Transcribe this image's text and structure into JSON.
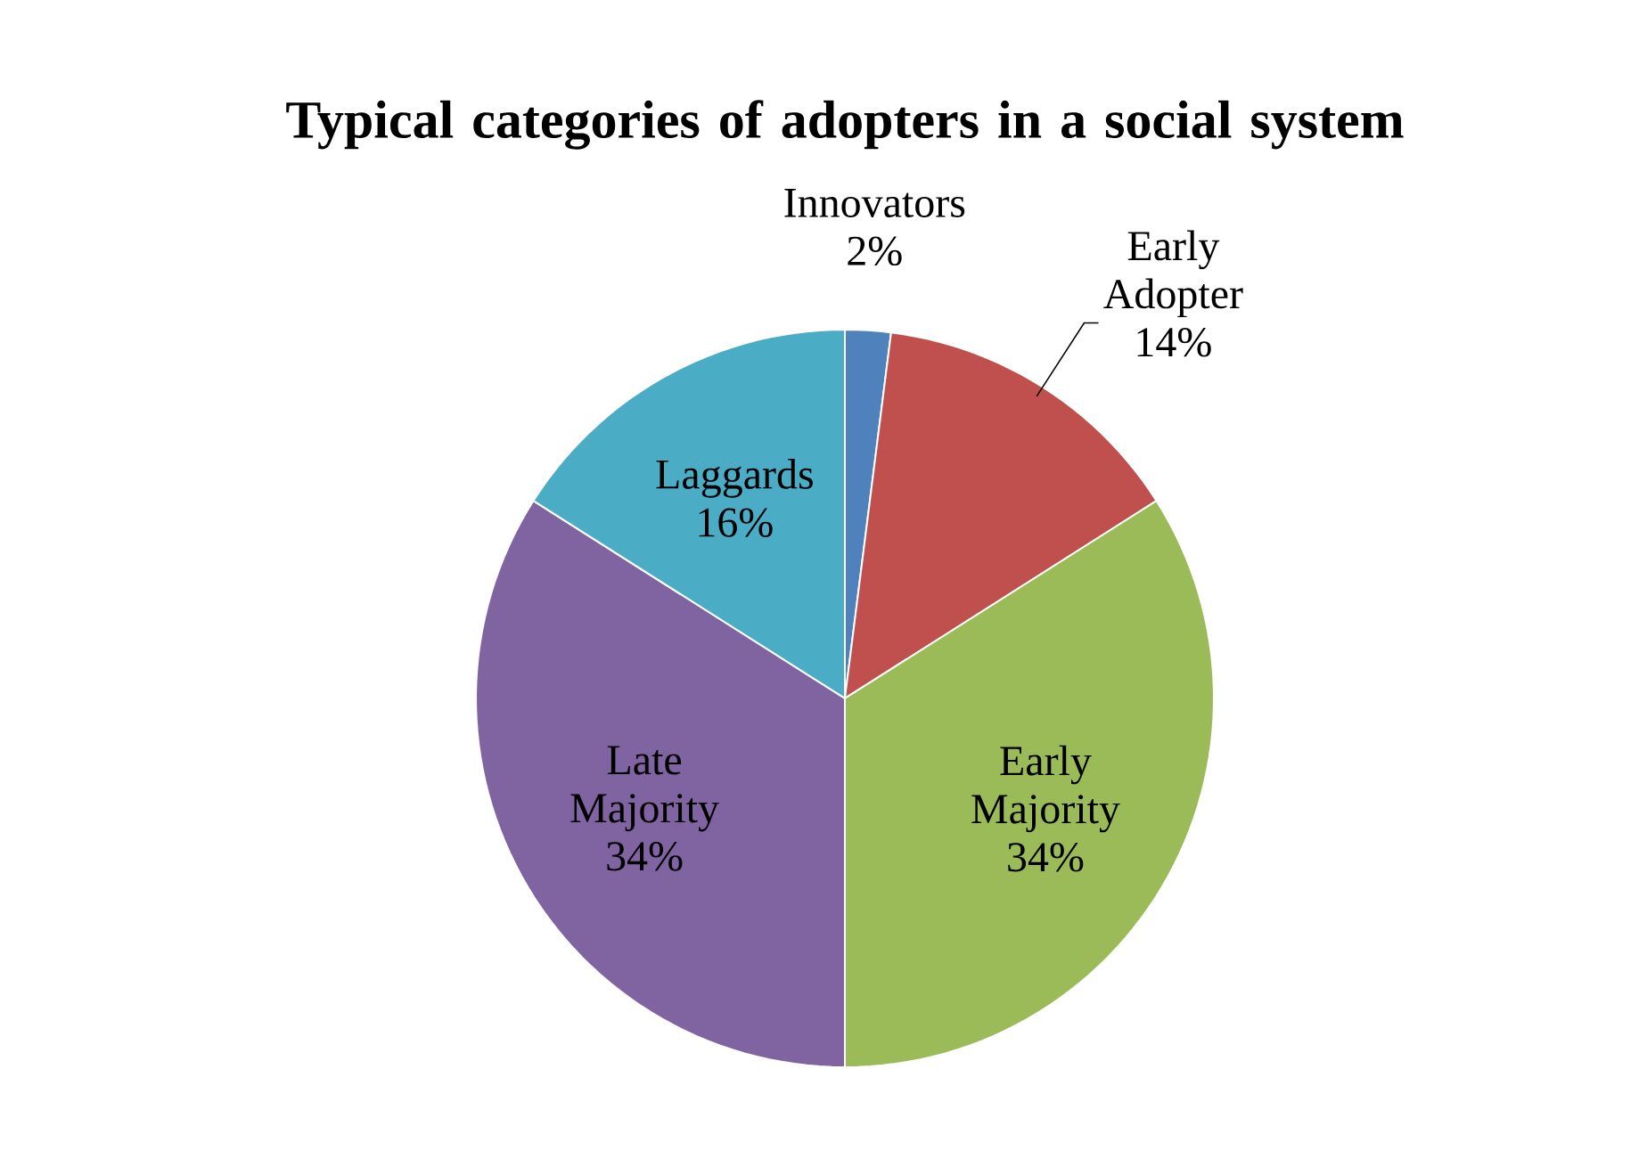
{
  "chart_data": {
    "type": "pie",
    "title": "Typical categories of adopters in a social system",
    "categories": [
      "Innovators",
      "Early Adopter",
      "Early Majority",
      "Late Majority",
      "Laggards"
    ],
    "values": [
      2,
      14,
      34,
      34,
      16
    ],
    "value_labels": [
      "2%",
      "14%",
      "34%",
      "34%",
      "16%"
    ],
    "colors": [
      "#4f81bd",
      "#c0504d",
      "#9bbb59",
      "#8064a2",
      "#4bacc6"
    ]
  }
}
